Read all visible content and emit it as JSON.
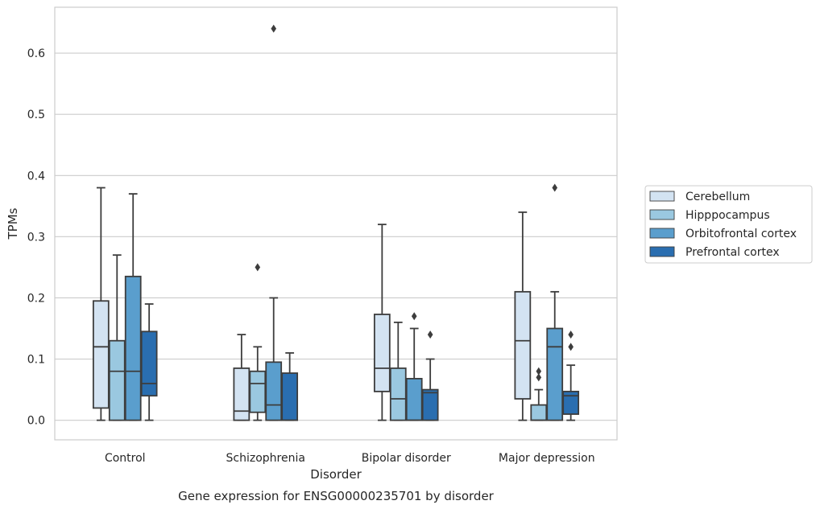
{
  "chart_data": {
    "type": "boxplot",
    "xlabel": "Disorder",
    "ylabel": "TPMs",
    "caption": "Gene expression for ENSG00000235701 by disorder",
    "ylim": [
      -0.032,
      0.675
    ],
    "yticks": [
      "0.0",
      "0.1",
      "0.2",
      "0.3",
      "0.4",
      "0.5",
      "0.6"
    ],
    "grid": "horizontal",
    "legend_position": "right",
    "categories": [
      "Control",
      "Schizophrenia",
      "Bipolar disorder",
      "Major depression"
    ],
    "series": [
      {
        "name": "Cerebellum",
        "color": "#d3e3f2",
        "boxes": [
          {
            "whisker_low": 0.0,
            "q1": 0.02,
            "median": 0.12,
            "q3": 0.195,
            "whisker_high": 0.38,
            "outliers": []
          },
          {
            "whisker_low": 0.0,
            "q1": 0.0,
            "median": 0.015,
            "q3": 0.085,
            "whisker_high": 0.14,
            "outliers": []
          },
          {
            "whisker_low": 0.0,
            "q1": 0.047,
            "median": 0.085,
            "q3": 0.173,
            "whisker_high": 0.32,
            "outliers": []
          },
          {
            "whisker_low": 0.0,
            "q1": 0.035,
            "median": 0.13,
            "q3": 0.21,
            "whisker_high": 0.34,
            "outliers": []
          }
        ]
      },
      {
        "name": "Hipppocampus",
        "color": "#9ac8e0",
        "boxes": [
          {
            "whisker_low": 0.0,
            "q1": 0.0,
            "median": 0.08,
            "q3": 0.13,
            "whisker_high": 0.27,
            "outliers": []
          },
          {
            "whisker_low": 0.0,
            "q1": 0.013,
            "median": 0.06,
            "q3": 0.08,
            "whisker_high": 0.12,
            "outliers": [
              0.25
            ]
          },
          {
            "whisker_low": 0.0,
            "q1": 0.0,
            "median": 0.035,
            "q3": 0.085,
            "whisker_high": 0.16,
            "outliers": []
          },
          {
            "whisker_low": 0.0,
            "q1": 0.0,
            "median": 0.0,
            "q3": 0.025,
            "whisker_high": 0.05,
            "outliers": [
              0.07,
              0.08
            ]
          }
        ]
      },
      {
        "name": "Orbitofrontal cortex",
        "color": "#5a9ecd",
        "boxes": [
          {
            "whisker_low": 0.0,
            "q1": 0.0,
            "median": 0.08,
            "q3": 0.235,
            "whisker_high": 0.37,
            "outliers": []
          },
          {
            "whisker_low": 0.0,
            "q1": 0.0,
            "median": 0.025,
            "q3": 0.095,
            "whisker_high": 0.2,
            "outliers": [
              0.64
            ]
          },
          {
            "whisker_low": 0.0,
            "q1": 0.0,
            "median": 0.0,
            "q3": 0.068,
            "whisker_high": 0.15,
            "outliers": [
              0.17
            ]
          },
          {
            "whisker_low": 0.0,
            "q1": 0.0,
            "median": 0.12,
            "q3": 0.15,
            "whisker_high": 0.21,
            "outliers": [
              0.38
            ]
          }
        ]
      },
      {
        "name": "Prefrontal cortex",
        "color": "#2a6eb0",
        "boxes": [
          {
            "whisker_low": 0.0,
            "q1": 0.04,
            "median": 0.06,
            "q3": 0.145,
            "whisker_high": 0.19,
            "outliers": []
          },
          {
            "whisker_low": 0.0,
            "q1": 0.0,
            "median": 0.0,
            "q3": 0.077,
            "whisker_high": 0.11,
            "outliers": []
          },
          {
            "whisker_low": 0.0,
            "q1": 0.0,
            "median": 0.045,
            "q3": 0.05,
            "whisker_high": 0.1,
            "outliers": [
              0.14
            ]
          },
          {
            "whisker_low": 0.0,
            "q1": 0.01,
            "median": 0.04,
            "q3": 0.047,
            "whisker_high": 0.09,
            "outliers": [
              0.12,
              0.14
            ]
          }
        ]
      }
    ]
  }
}
